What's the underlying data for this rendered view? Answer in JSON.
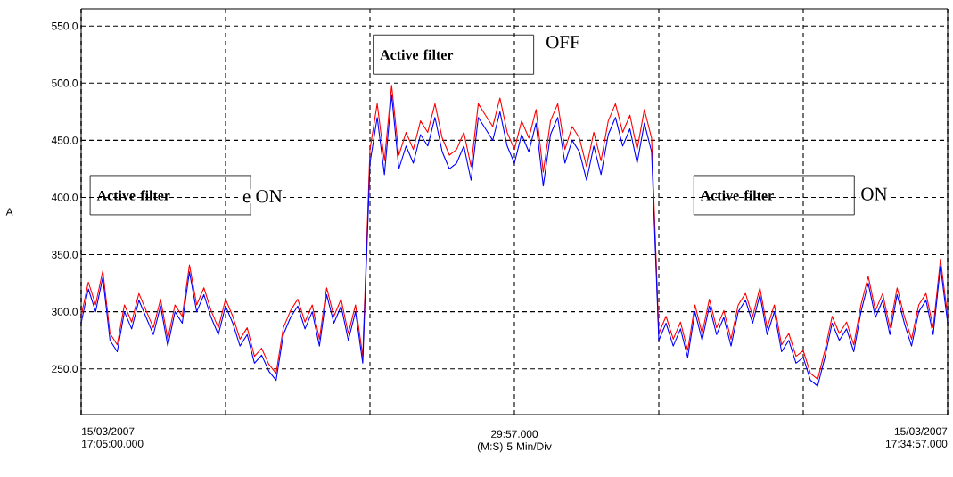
{
  "chart_data": {
    "type": "line",
    "ylabel": "A",
    "xlabel": "29:57.000 (M:S) 5 Min/Div",
    "ylim": [
      210,
      565
    ],
    "yticks": [
      {
        "value": 250,
        "label": "250.0"
      },
      {
        "value": 300,
        "label": "300.0"
      },
      {
        "value": 350,
        "label": "350.0"
      },
      {
        "value": 400,
        "label": "400.0"
      },
      {
        "value": 450,
        "label": "450.0"
      },
      {
        "value": 500,
        "label": "500.0"
      },
      {
        "value": 550,
        "label": "550.0"
      }
    ],
    "grid": true,
    "marker": "none",
    "line_style": "solid",
    "categories": [
      null,
      null,
      null,
      null,
      null,
      null,
      null,
      null,
      null,
      null,
      null,
      null,
      null,
      null,
      null,
      null,
      null,
      null,
      null,
      null,
      null,
      null,
      null,
      null,
      null,
      null,
      null,
      null,
      null,
      null,
      null,
      null,
      null,
      null,
      null,
      null,
      null,
      null,
      null,
      null,
      null,
      null,
      null,
      null,
      null,
      null,
      null,
      null,
      null,
      null,
      null,
      null,
      null,
      null,
      null,
      null,
      null,
      null,
      null,
      null,
      null,
      null,
      null,
      null,
      null,
      null,
      null,
      null,
      null,
      null,
      null,
      null,
      null,
      null,
      null,
      null,
      null,
      null,
      null,
      null,
      null,
      null,
      null,
      null,
      null,
      null,
      null,
      null,
      null,
      null,
      null,
      null,
      null,
      null,
      null,
      null,
      null,
      null,
      null,
      null,
      null,
      null,
      null,
      null,
      null,
      null,
      null,
      null,
      null,
      null,
      null,
      null,
      null,
      null,
      null,
      null,
      null,
      null,
      null,
      null,
      null
    ],
    "series": [
      {
        "color": "#ff0000",
        "values": [
          296,
          326,
          306,
          336,
          281,
          271,
          306,
          291,
          316,
          301,
          286,
          311,
          276,
          306,
          296,
          341,
          306,
          321,
          301,
          286,
          311,
          296,
          276,
          286,
          261,
          268,
          254,
          246,
          286,
          301,
          311,
          291,
          306,
          276,
          321,
          296,
          311,
          281,
          306,
          261,
          442,
          482,
          432,
          498,
          437,
          457,
          442,
          467,
          457,
          482,
          452,
          437,
          442,
          457,
          427,
          482,
          472,
          462,
          487,
          457,
          442,
          467,
          452,
          477,
          422,
          467,
          482,
          442,
          462,
          452,
          427,
          457,
          432,
          467,
          482,
          457,
          472,
          442,
          477,
          452,
          281,
          296,
          276,
          291,
          266,
          306,
          281,
          311,
          286,
          301,
          276,
          306,
          316,
          296,
          321,
          286,
          306,
          271,
          281,
          261,
          266,
          246,
          241,
          266,
          296,
          281,
          291,
          271,
          306,
          331,
          301,
          316,
          286,
          321,
          296,
          276,
          306,
          316,
          286,
          346,
          296
        ]
      },
      {
        "color": "#0000ff",
        "values": [
          290,
          320,
          300,
          330,
          275,
          265,
          300,
          285,
          310,
          295,
          280,
          305,
          270,
          300,
          290,
          335,
          300,
          315,
          295,
          280,
          305,
          290,
          270,
          280,
          255,
          262,
          248,
          240,
          280,
          295,
          305,
          285,
          300,
          270,
          315,
          290,
          305,
          275,
          300,
          255,
          430,
          470,
          420,
          490,
          425,
          445,
          430,
          455,
          445,
          470,
          440,
          425,
          430,
          445,
          415,
          470,
          460,
          450,
          475,
          445,
          430,
          455,
          440,
          465,
          410,
          455,
          470,
          430,
          450,
          440,
          415,
          445,
          420,
          455,
          470,
          445,
          460,
          430,
          465,
          440,
          275,
          290,
          270,
          285,
          260,
          300,
          275,
          305,
          280,
          295,
          270,
          300,
          310,
          290,
          315,
          280,
          300,
          265,
          275,
          255,
          260,
          240,
          235,
          260,
          290,
          275,
          285,
          265,
          300,
          325,
          295,
          310,
          280,
          315,
          290,
          270,
          300,
          310,
          280,
          340,
          290
        ]
      }
    ],
    "annotations": [
      "Active filter",
      "e ON",
      "Active filter",
      "OFF",
      "Active filter",
      "ON",
      "15/03/2007 17:05:00.000",
      "15/03/2007 17:34:57.000"
    ]
  }
}
